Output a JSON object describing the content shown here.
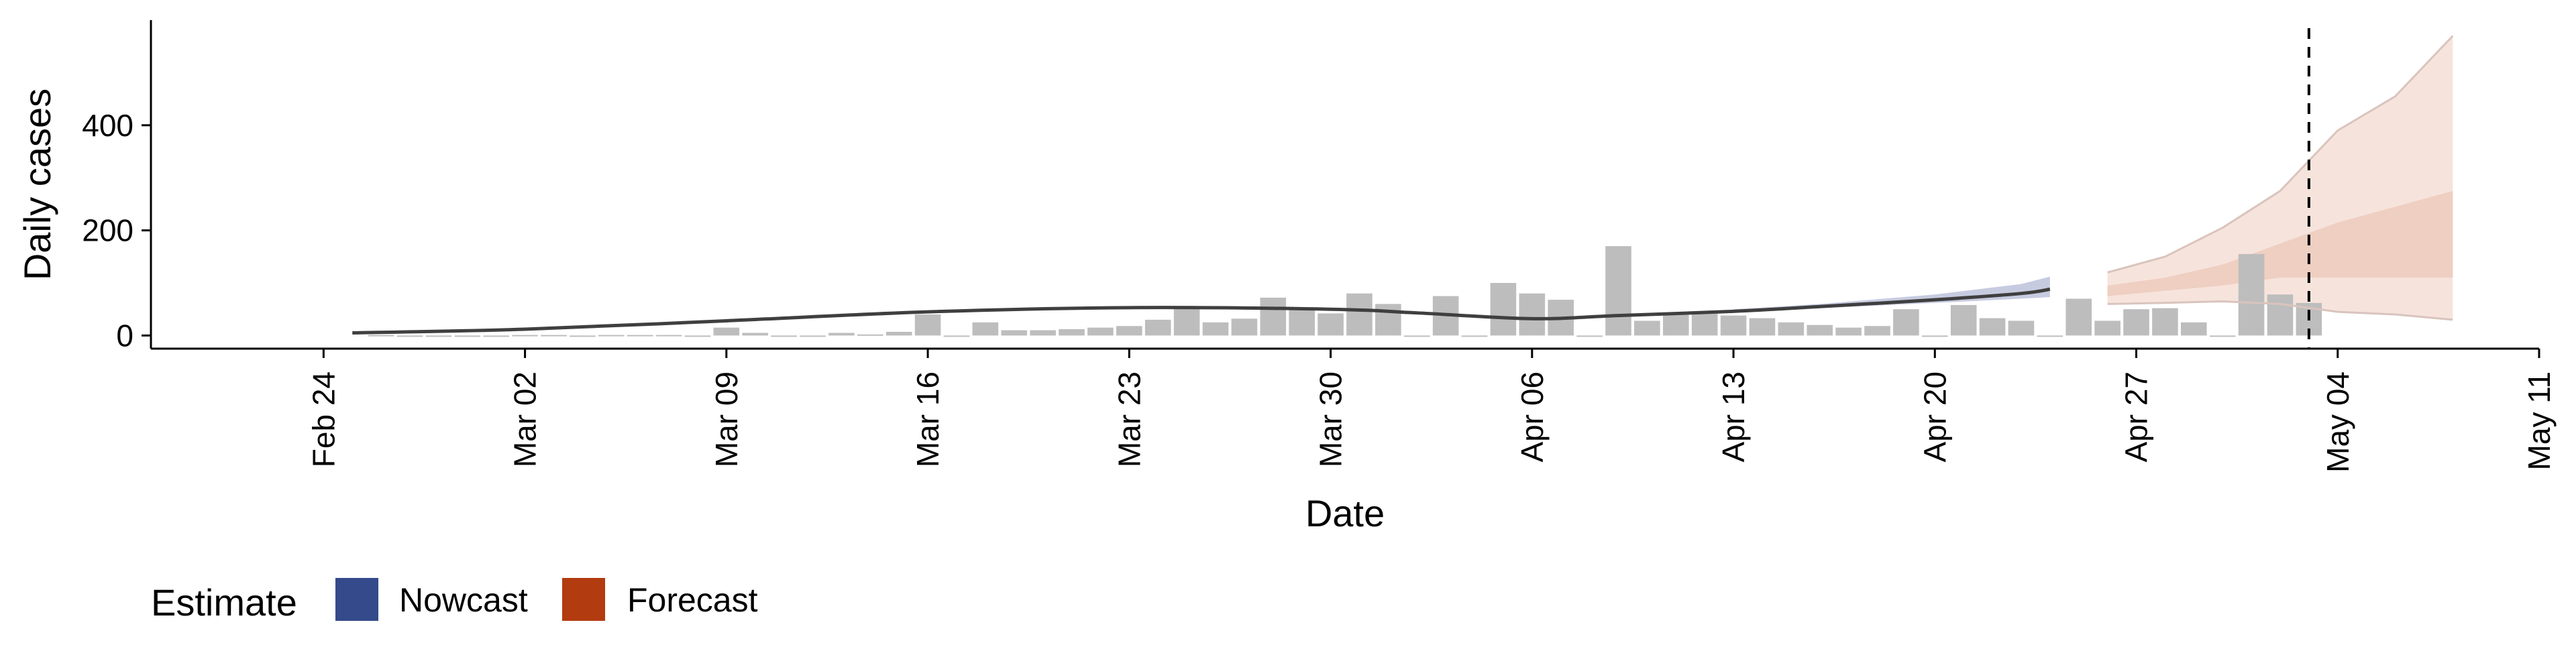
{
  "chart_data": {
    "type": "bar",
    "xlabel": "Date",
    "ylabel": "Daily cases",
    "x_ticks": [
      "Feb 24",
      "Mar 02",
      "Mar 09",
      "Mar 16",
      "Mar 23",
      "Mar 30",
      "Apr 06",
      "Apr 13",
      "Apr 20",
      "Apr 27",
      "May 04",
      "May 11"
    ],
    "y_ticks": [
      "0",
      "200",
      "400"
    ],
    "ylim": [
      -25,
      600
    ],
    "xlim": [
      "2020-02-18",
      "2020-05-11"
    ],
    "grid": false,
    "legend_position": "bottom-left",
    "legend": {
      "title": "Estimate",
      "entries": [
        {
          "label": "Nowcast",
          "color": "#344a8a"
        },
        {
          "label": "Forecast",
          "color": "#b23b0f"
        }
      ]
    },
    "bars": {
      "color": "#bdbdbd",
      "dates": [
        "2020-02-26",
        "2020-02-27",
        "2020-02-28",
        "2020-02-29",
        "2020-03-01",
        "2020-03-02",
        "2020-03-03",
        "2020-03-04",
        "2020-03-05",
        "2020-03-06",
        "2020-03-07",
        "2020-03-08",
        "2020-03-09",
        "2020-03-10",
        "2020-03-11",
        "2020-03-12",
        "2020-03-13",
        "2020-03-14",
        "2020-03-15",
        "2020-03-16",
        "2020-03-17",
        "2020-03-18",
        "2020-03-19",
        "2020-03-20",
        "2020-03-21",
        "2020-03-22",
        "2020-03-23",
        "2020-03-24",
        "2020-03-25",
        "2020-03-26",
        "2020-03-27",
        "2020-03-28",
        "2020-03-29",
        "2020-03-30",
        "2020-03-31",
        "2020-04-01",
        "2020-04-02",
        "2020-04-03",
        "2020-04-04",
        "2020-04-05",
        "2020-04-06",
        "2020-04-07",
        "2020-04-08",
        "2020-04-09",
        "2020-04-10",
        "2020-04-11",
        "2020-04-12",
        "2020-04-13",
        "2020-04-14",
        "2020-04-15",
        "2020-04-16",
        "2020-04-17",
        "2020-04-18",
        "2020-04-19",
        "2020-04-20",
        "2020-04-21",
        "2020-04-22",
        "2020-04-23",
        "2020-04-24",
        "2020-04-25",
        "2020-04-26",
        "2020-04-27",
        "2020-04-28",
        "2020-04-29",
        "2020-04-30",
        "2020-05-01",
        "2020-05-02",
        "2020-05-03"
      ],
      "values": [
        1,
        0,
        0,
        0,
        0,
        1,
        1,
        0,
        1,
        1,
        1,
        0,
        15,
        5,
        0,
        0,
        5,
        2,
        7,
        40,
        0,
        25,
        10,
        10,
        12,
        15,
        18,
        30,
        52,
        25,
        32,
        72,
        50,
        42,
        80,
        60,
        0,
        75,
        0,
        100,
        80,
        68,
        0,
        170,
        28,
        42,
        42,
        38,
        33,
        25,
        20,
        15,
        18,
        50,
        0,
        58,
        33,
        28,
        0,
        70,
        28,
        50,
        52,
        25,
        0,
        155,
        78,
        62
      ]
    },
    "series": [
      {
        "kind": "line",
        "dates": [
          "2020-02-25",
          "2020-03-02",
          "2020-03-09",
          "2020-03-16",
          "2020-03-23",
          "2020-03-30",
          "2020-04-02",
          "2020-04-06",
          "2020-04-09",
          "2020-04-13",
          "2020-04-16",
          "2020-04-20",
          "2020-04-23",
          "2020-04-24"
        ],
        "values": [
          5,
          12,
          28,
          45,
          53,
          50,
          43,
          32,
          38,
          46,
          55,
          68,
          80,
          88
        ],
        "color": "#3f3f3f"
      },
      {
        "kind": "band",
        "dates": [
          "2020-04-13",
          "2020-04-16",
          "2020-04-20",
          "2020-04-23",
          "2020-04-24"
        ],
        "lower": [
          44,
          52,
          62,
          70,
          73
        ],
        "upper": [
          50,
          60,
          78,
          98,
          112
        ],
        "color": "#c7cbe0"
      },
      {
        "kind": "band",
        "dates": [
          "2020-04-26",
          "2020-04-28",
          "2020-04-30",
          "2020-05-02",
          "2020-05-04",
          "2020-05-06",
          "2020-05-08"
        ],
        "lower": [
          60,
          62,
          65,
          60,
          45,
          40,
          30
        ],
        "upper": [
          120,
          150,
          205,
          275,
          390,
          455,
          570
        ],
        "color": "#f6e4dc"
      },
      {
        "kind": "band",
        "dates": [
          "2020-04-26",
          "2020-04-28",
          "2020-04-30",
          "2020-05-02",
          "2020-05-04",
          "2020-05-06",
          "2020-05-08"
        ],
        "lower": [
          75,
          85,
          95,
          110,
          110,
          110,
          110
        ],
        "upper": [
          95,
          110,
          135,
          175,
          215,
          245,
          275
        ],
        "color": "#efcfc2"
      }
    ],
    "reference_line": {
      "date": "2020-05-03",
      "style": "dashed",
      "color": "#000000"
    }
  }
}
